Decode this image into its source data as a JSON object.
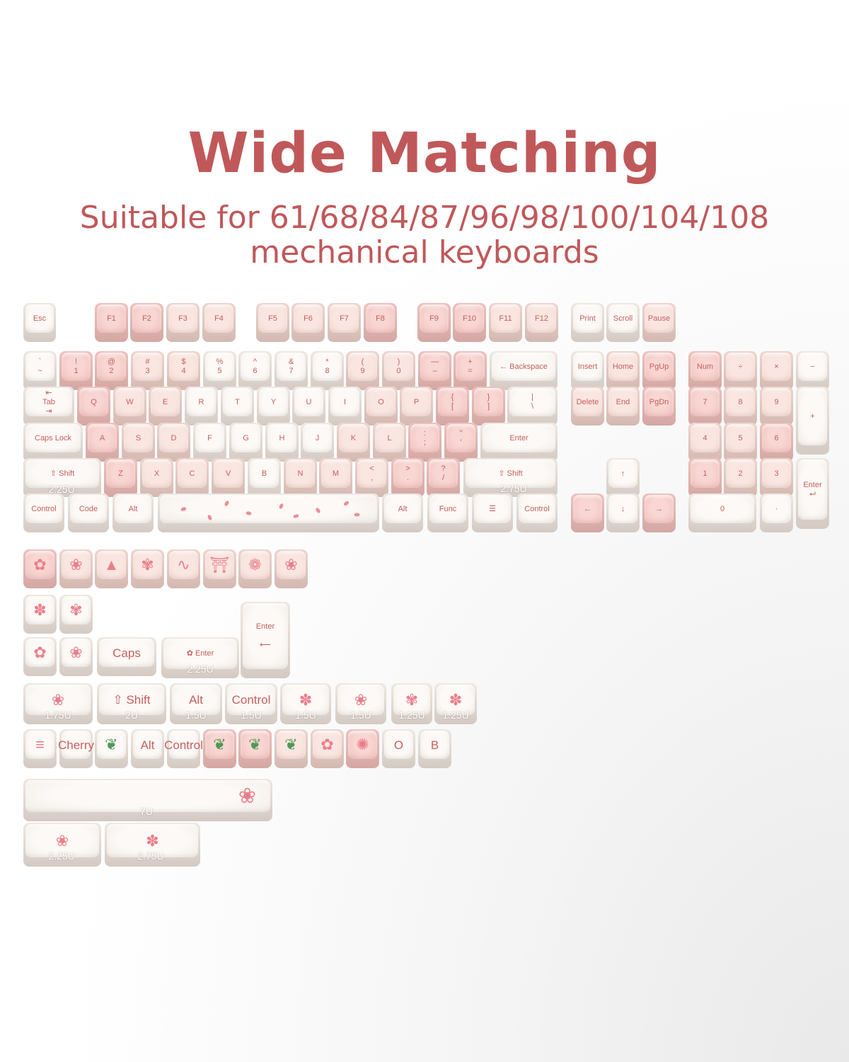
{
  "header": {
    "title": "Wide Matching",
    "subtitle_line1": "Suitable for 61/68/84/87/96/98/100/104/108",
    "subtitle_line2": "mechanical keyboards"
  },
  "colors": {
    "accent": "#c0585a",
    "legend": "#c65f5d",
    "pink_cap": "#f1bebb",
    "blush_cap": "#f3d6cf",
    "white_cap": "#f8f4f0"
  },
  "keyboard": {
    "fn": [
      {
        "label": "Esc",
        "tone": "w"
      },
      {
        "label": "F1",
        "tone": "p"
      },
      {
        "label": "F2",
        "tone": "p"
      },
      {
        "label": "F3",
        "tone": "b"
      },
      {
        "label": "F4",
        "tone": "b"
      },
      {
        "label": "F5",
        "tone": "b"
      },
      {
        "label": "F6",
        "tone": "b"
      },
      {
        "label": "F7",
        "tone": "b"
      },
      {
        "label": "F8",
        "tone": "p"
      },
      {
        "label": "F9",
        "tone": "p"
      },
      {
        "label": "F10",
        "tone": "p"
      },
      {
        "label": "F11",
        "tone": "b"
      },
      {
        "label": "F12",
        "tone": "b"
      },
      {
        "label": "Print",
        "tone": "w"
      },
      {
        "label": "Scroll",
        "tone": "w"
      },
      {
        "label": "Pause",
        "tone": "b"
      }
    ],
    "num": [
      {
        "label": "`\n~",
        "tone": "w"
      },
      {
        "label": "!\n1",
        "tone": "p"
      },
      {
        "label": "@\n2",
        "tone": "p"
      },
      {
        "label": "#\n3",
        "tone": "b"
      },
      {
        "label": "$\n4",
        "tone": "b"
      },
      {
        "label": "%\n5",
        "tone": "w"
      },
      {
        "label": "^\n6",
        "tone": "w"
      },
      {
        "label": "&\n7",
        "tone": "w"
      },
      {
        "label": "*\n8",
        "tone": "w"
      },
      {
        "label": "(\n9",
        "tone": "b"
      },
      {
        "label": ")\n0",
        "tone": "b"
      },
      {
        "label": "—\n–",
        "tone": "p"
      },
      {
        "label": "+\n=",
        "tone": "p"
      },
      {
        "label": "← Backspace",
        "tone": "w"
      },
      {
        "label": "Insert",
        "tone": "w"
      },
      {
        "label": "Home",
        "tone": "b"
      },
      {
        "label": "PgUp",
        "tone": "p"
      },
      {
        "label": "Num",
        "tone": "p"
      },
      {
        "label": "÷",
        "tone": "b"
      },
      {
        "label": "×",
        "tone": "b"
      },
      {
        "label": "−",
        "tone": "w"
      }
    ],
    "q": [
      {
        "label": "⇤\nTab\n⇥",
        "tone": "w"
      },
      {
        "label": "Q",
        "tone": "p"
      },
      {
        "label": "W",
        "tone": "b"
      },
      {
        "label": "E",
        "tone": "b"
      },
      {
        "label": "R",
        "tone": "w"
      },
      {
        "label": "T",
        "tone": "w"
      },
      {
        "label": "Y",
        "tone": "w"
      },
      {
        "label": "U",
        "tone": "w"
      },
      {
        "label": "I",
        "tone": "w"
      },
      {
        "label": "O",
        "tone": "b"
      },
      {
        "label": "P",
        "tone": "b"
      },
      {
        "label": "{\n[",
        "tone": "p"
      },
      {
        "label": "}\n]",
        "tone": "p"
      },
      {
        "label": "|\n\\",
        "tone": "w"
      },
      {
        "label": "Delete",
        "tone": "b"
      },
      {
        "label": "End",
        "tone": "b"
      },
      {
        "label": "PgDn",
        "tone": "p"
      },
      {
        "label": "7",
        "tone": "p"
      },
      {
        "label": "8",
        "tone": "b"
      },
      {
        "label": "9",
        "tone": "b"
      },
      {
        "label": "+",
        "tone": "w"
      }
    ],
    "a": [
      {
        "label": "Caps Lock",
        "tone": "w"
      },
      {
        "label": "A",
        "tone": "p"
      },
      {
        "label": "S",
        "tone": "b"
      },
      {
        "label": "D",
        "tone": "b"
      },
      {
        "label": "F",
        "tone": "w"
      },
      {
        "label": "G",
        "tone": "w"
      },
      {
        "label": "H",
        "tone": "w"
      },
      {
        "label": "J",
        "tone": "w"
      },
      {
        "label": "K",
        "tone": "b"
      },
      {
        "label": "L",
        "tone": "b"
      },
      {
        "label": ":\n;",
        "tone": "p"
      },
      {
        "label": "\"\n'",
        "tone": "p"
      },
      {
        "label": "Enter",
        "tone": "w"
      },
      {
        "label": "4",
        "tone": "b"
      },
      {
        "label": "5",
        "tone": "b"
      },
      {
        "label": "6",
        "tone": "p"
      }
    ],
    "z": [
      {
        "label": "⇧ Shift",
        "tone": "w"
      },
      {
        "label": "Z",
        "tone": "p"
      },
      {
        "label": "X",
        "tone": "b"
      },
      {
        "label": "C",
        "tone": "b"
      },
      {
        "label": "V",
        "tone": "b"
      },
      {
        "label": "B",
        "tone": "w"
      },
      {
        "label": "N",
        "tone": "b"
      },
      {
        "label": "M",
        "tone": "b"
      },
      {
        "label": "<\n,",
        "tone": "b"
      },
      {
        "label": ">\n.",
        "tone": "p"
      },
      {
        "label": "?\n/",
        "tone": "p"
      },
      {
        "label": "⇧ Shift",
        "tone": "w"
      },
      {
        "label": "↑",
        "tone": "w"
      },
      {
        "label": "1",
        "tone": "p"
      },
      {
        "label": "2",
        "tone": "b"
      },
      {
        "label": "3",
        "tone": "b"
      },
      {
        "label": "Enter\n⮠",
        "tone": "w"
      }
    ],
    "bottom": [
      {
        "label": "Control",
        "tone": "w"
      },
      {
        "label": "Code",
        "tone": "w"
      },
      {
        "label": "Alt",
        "tone": "w"
      },
      {
        "label": "",
        "tone": "w",
        "icon": "petals-icon"
      },
      {
        "label": "Alt",
        "tone": "w"
      },
      {
        "label": "Func",
        "tone": "w"
      },
      {
        "label": "☰",
        "tone": "w"
      },
      {
        "label": "Control",
        "tone": "w"
      },
      {
        "label": "←",
        "tone": "p"
      },
      {
        "label": "↓",
        "tone": "w"
      },
      {
        "label": "→",
        "tone": "p"
      },
      {
        "label": "0",
        "tone": "w"
      },
      {
        "label": "·",
        "tone": "w"
      }
    ]
  },
  "extras": {
    "e1": [
      {
        "label": "",
        "tone": "p",
        "icon": "sakura-icon"
      },
      {
        "label": "",
        "tone": "b",
        "icon": "branch-icon"
      },
      {
        "label": "",
        "tone": "b",
        "icon": "mountain-icon"
      },
      {
        "label": "",
        "tone": "b",
        "icon": "flower-icon"
      },
      {
        "label": "",
        "tone": "b",
        "icon": "wave-icon"
      },
      {
        "label": "",
        "tone": "b",
        "icon": "torii-icon"
      },
      {
        "label": "",
        "tone": "b",
        "icon": "lotus-icon"
      },
      {
        "label": "",
        "tone": "b",
        "icon": "blossom-icon"
      }
    ],
    "e2": [
      {
        "label": "",
        "tone": "w",
        "icon": "bud-icon"
      },
      {
        "label": "",
        "tone": "w",
        "icon": "flower-icon"
      },
      {
        "label": "Enter\n\n⟵",
        "tone": "w"
      }
    ],
    "e3": [
      {
        "label": "",
        "tone": "w",
        "icon": "sakura-icon"
      },
      {
        "label": "",
        "tone": "w",
        "icon": "branch-icon"
      },
      {
        "label": "Caps",
        "tone": "w"
      },
      {
        "label": "✿  Enter",
        "tone": "w"
      }
    ],
    "e4": [
      {
        "label": "",
        "tone": "w",
        "icon": "blossom-icon"
      },
      {
        "label": "⇧ Shift",
        "tone": "w"
      },
      {
        "label": "Alt",
        "tone": "w"
      },
      {
        "label": "Control",
        "tone": "w"
      },
      {
        "label": "",
        "tone": "w",
        "icon": "bud-icon"
      },
      {
        "label": "",
        "tone": "w",
        "icon": "branch-icon"
      },
      {
        "label": "",
        "tone": "w",
        "icon": "flower-icon"
      },
      {
        "label": "",
        "tone": "w",
        "icon": "bud-icon"
      }
    ],
    "e5": [
      {
        "label": "",
        "tone": "w",
        "icon": "cloud-icon"
      },
      {
        "label": "Cherry",
        "tone": "w"
      },
      {
        "label": "",
        "tone": "w",
        "icon": "leaf-icon"
      },
      {
        "label": "Alt",
        "tone": "w"
      },
      {
        "label": "Control",
        "tone": "w"
      },
      {
        "label": "",
        "tone": "p",
        "icon": "leaf-icon"
      },
      {
        "label": "",
        "tone": "p",
        "icon": "leaf-icon"
      },
      {
        "label": "",
        "tone": "b",
        "icon": "leaf-icon"
      },
      {
        "label": "",
        "tone": "b",
        "icon": "sakura-icon"
      },
      {
        "label": "",
        "tone": "p",
        "icon": "pinwheel-icon"
      },
      {
        "label": "O",
        "tone": "w"
      },
      {
        "label": "B",
        "tone": "w"
      }
    ],
    "e6": [
      {
        "label": "",
        "tone": "w",
        "icon": "blossom-icon"
      }
    ],
    "e7": [
      {
        "label": "",
        "tone": "w",
        "icon": "branch-icon"
      },
      {
        "label": "",
        "tone": "w",
        "icon": "bud-icon"
      }
    ]
  },
  "size_labels": [
    "2.25U",
    "2.75U",
    "2.25U",
    "1.75U",
    "2U",
    "1.5U",
    "1.5U",
    "1.5U",
    "1.5U",
    "1.25U",
    "1.25U",
    "7U",
    "2.25U",
    "2.75U"
  ]
}
